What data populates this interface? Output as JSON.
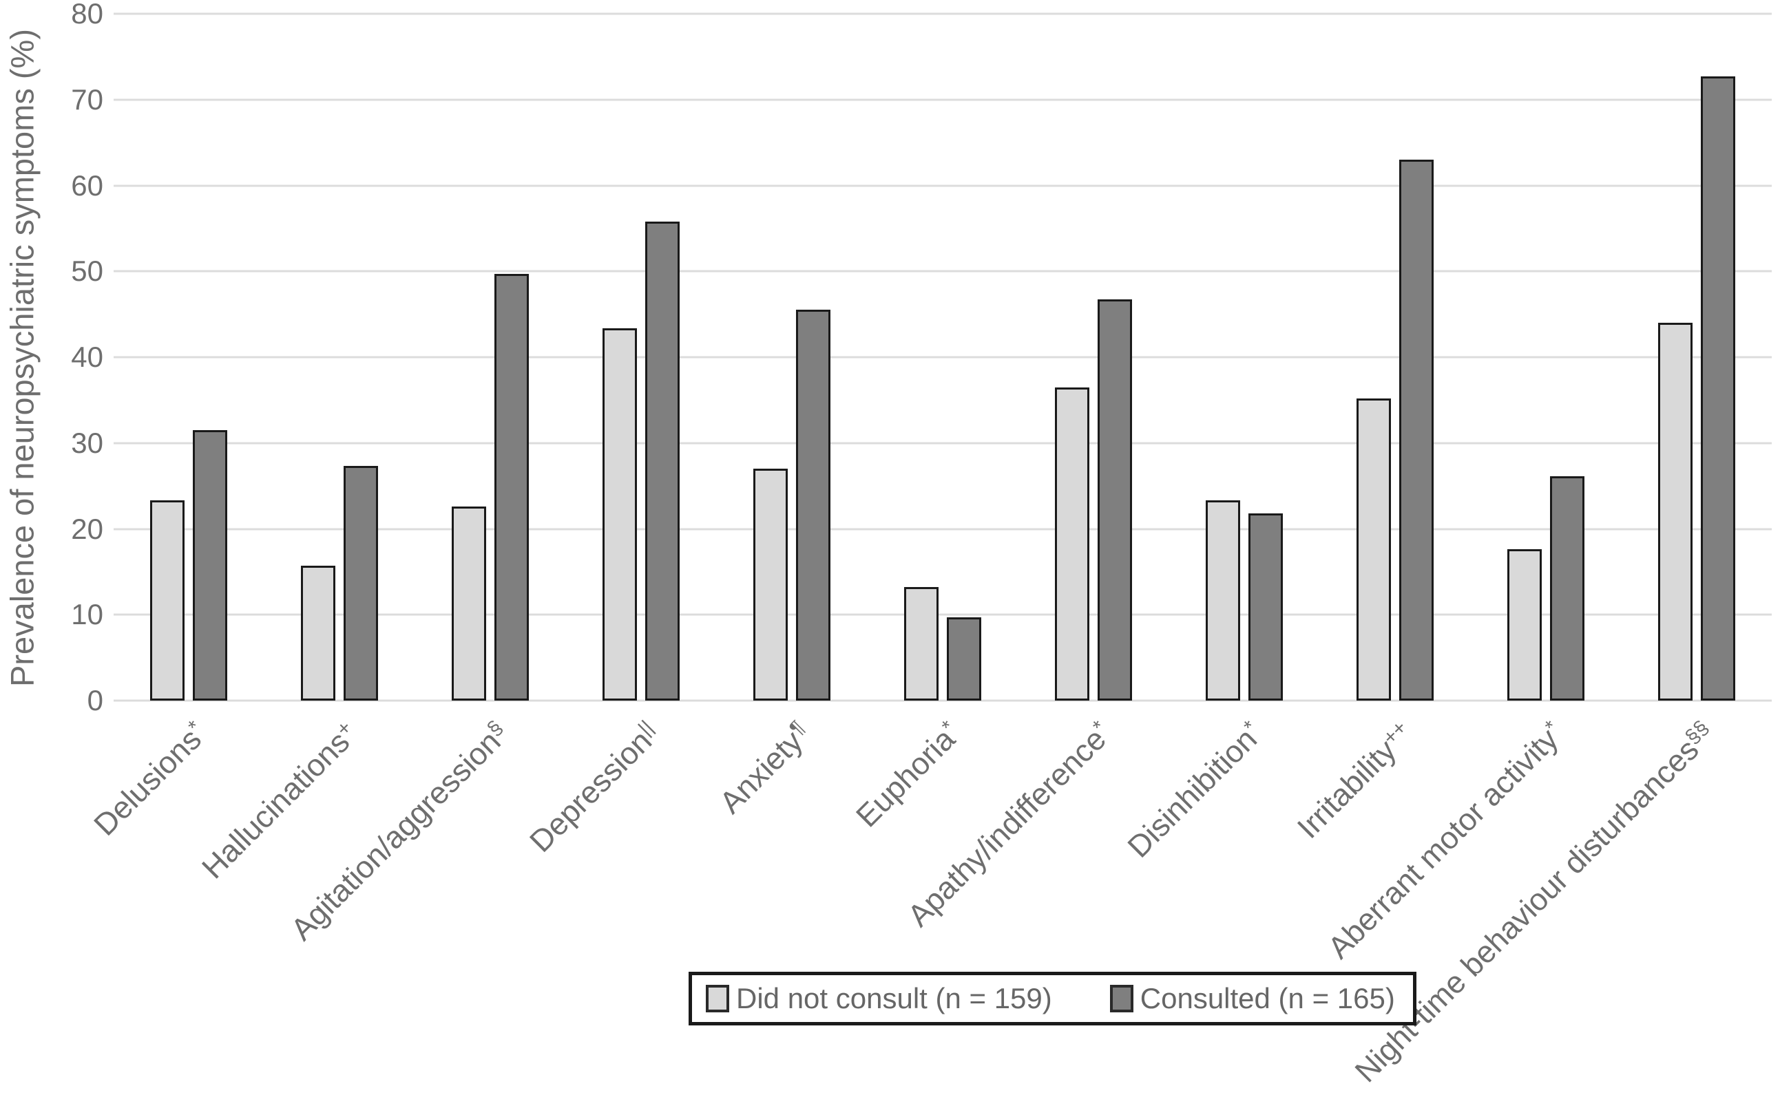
{
  "chart_data": {
    "type": "bar",
    "title": "",
    "xlabel": "",
    "ylabel": "Prevalence of neuropsychiatric symptoms (%)",
    "ylim": [
      0,
      80
    ],
    "yticks": [
      0,
      10,
      20,
      30,
      40,
      50,
      60,
      70,
      80
    ],
    "grid": "horizontal",
    "legend_position": "bottom-center",
    "categories": [
      {
        "label": "Delusions",
        "sup": "*",
        "slug": "delusions"
      },
      {
        "label": "Hallucinations",
        "sup": "+",
        "slug": "hallucinations"
      },
      {
        "label": "Agitation/aggression",
        "sup": "§",
        "slug": "agitation-aggression"
      },
      {
        "label": "Depression",
        "sup": "||",
        "slug": "depression"
      },
      {
        "label": "Anxiety",
        "sup": "¶",
        "slug": "anxiety"
      },
      {
        "label": "Euphoria",
        "sup": "*",
        "slug": "euphoria"
      },
      {
        "label": "Apathy/indifference",
        "sup": "*",
        "slug": "apathy-indifference"
      },
      {
        "label": "Disinhibition",
        "sup": "*",
        "slug": "disinhibition"
      },
      {
        "label": "Irritability",
        "sup": "++",
        "slug": "irritability"
      },
      {
        "label": "Aberrant motor activity",
        "sup": "*",
        "slug": "aberrant-motor-activity"
      },
      {
        "label": "Night-time behaviour disturbances",
        "sup": "§§",
        "slug": "night-time-behaviour-disturbances"
      }
    ],
    "series": [
      {
        "name": "Did not consult (n = 159)",
        "slug": "did-not-consult",
        "color": "#d9d9d9",
        "values": [
          23.3,
          15.7,
          22.6,
          43.4,
          27.0,
          13.2,
          36.5,
          23.3,
          35.2,
          17.6,
          44.0
        ]
      },
      {
        "name": "Consulted (n = 165)",
        "slug": "consulted",
        "color": "#7f7f7f",
        "values": [
          31.5,
          27.3,
          49.7,
          55.8,
          45.5,
          9.7,
          46.7,
          21.8,
          63.0,
          26.1,
          72.7
        ]
      }
    ],
    "colors": {
      "bar_outline": "#1a1a1a",
      "gridline": "#dcdcdc",
      "axis_text": "#6e6e6e",
      "legend_border": "#1a1a1a"
    }
  }
}
